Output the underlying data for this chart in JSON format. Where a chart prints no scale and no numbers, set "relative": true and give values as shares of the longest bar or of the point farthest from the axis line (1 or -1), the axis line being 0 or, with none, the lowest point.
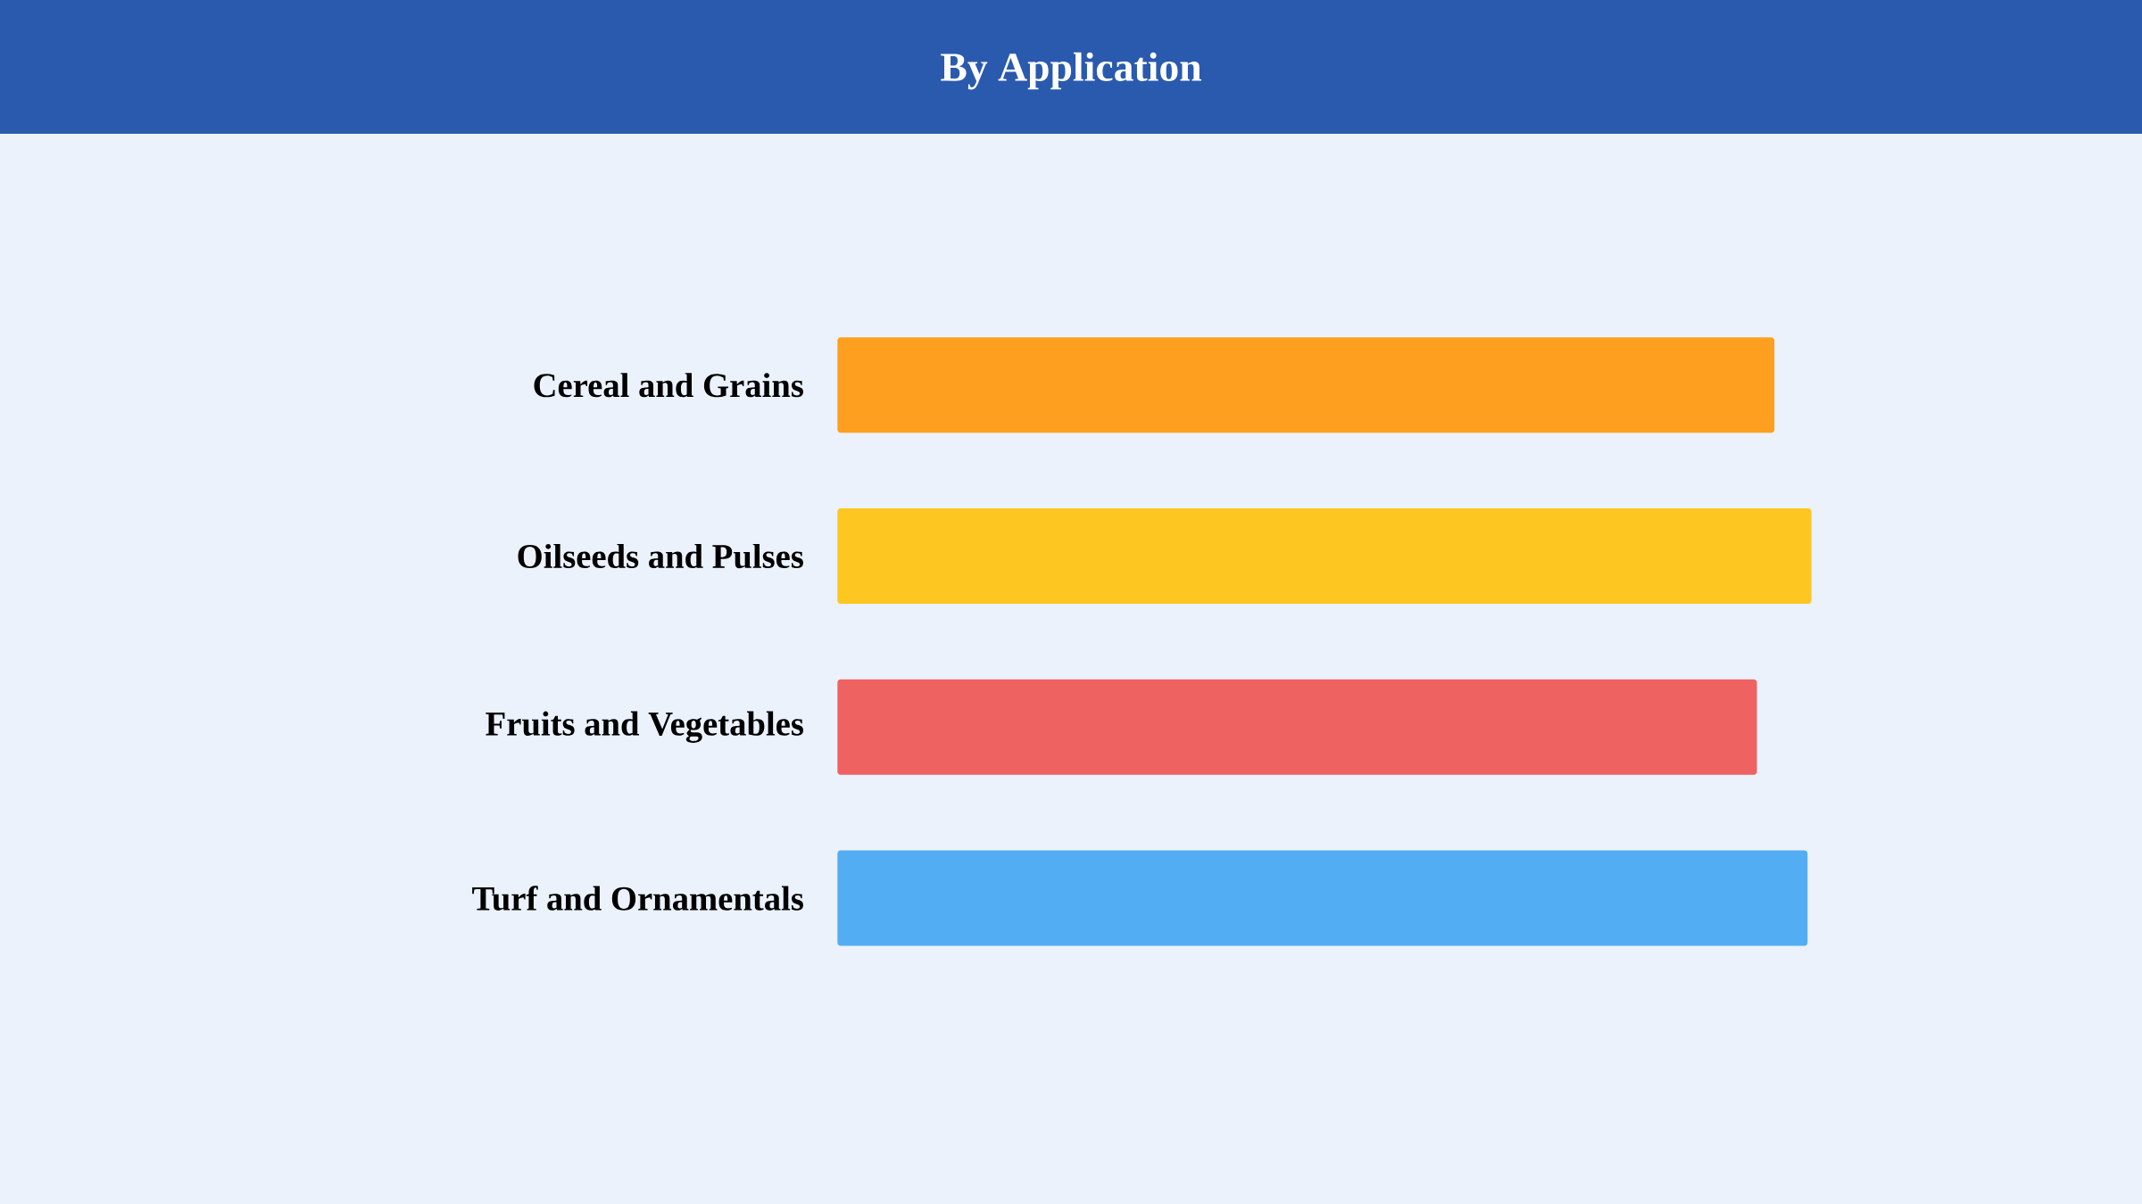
{
  "chart_data": {
    "type": "bar",
    "title": "By Application",
    "orientation": "horizontal",
    "relative": true,
    "categories": [
      "Cereal and Grains",
      "Oilseeds and Pulses",
      "Fruits and Vegetables",
      "Turf and Ornamentals"
    ],
    "values": [
      0.962,
      1,
      0.944,
      0.996
    ],
    "colors": [
      "#ff9f1f",
      "#fdc621",
      "#ef6262",
      "#52adf3"
    ]
  }
}
